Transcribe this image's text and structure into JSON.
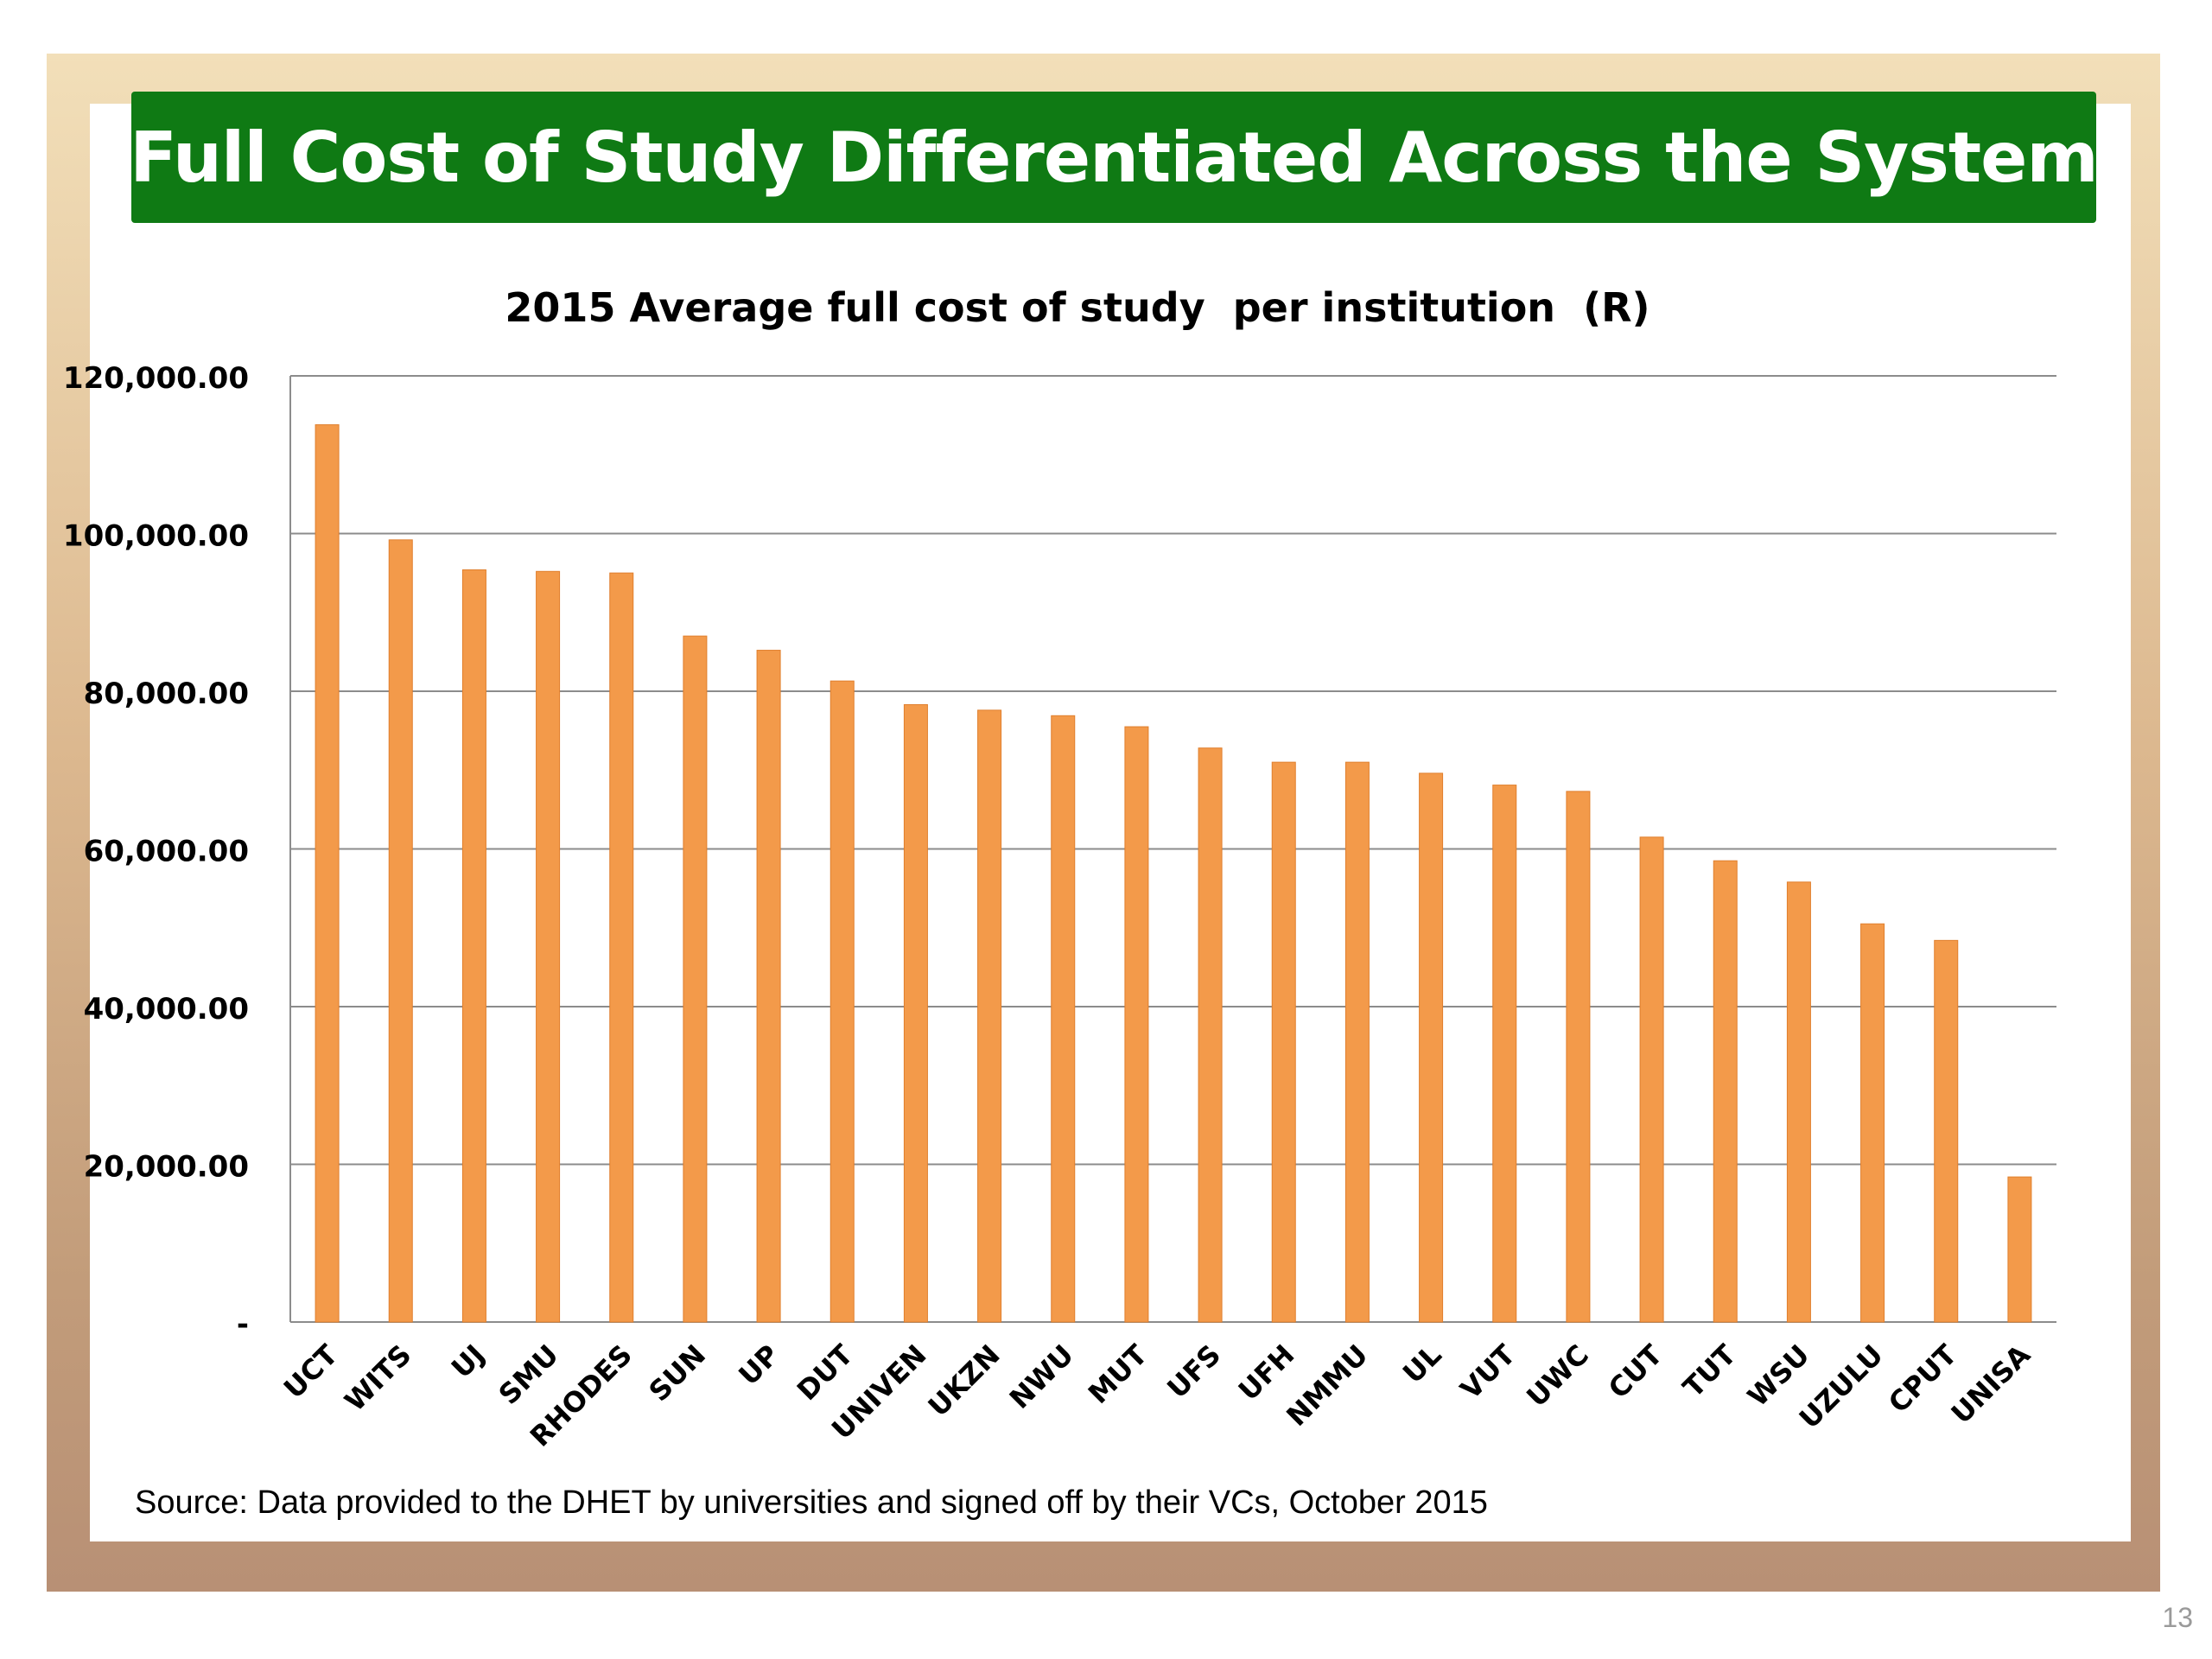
{
  "slide": {
    "title": "Full Cost of Study Differentiated Across the System",
    "source": "Source: Data provided to the DHET by universities and signed off by their VCs, October 2015",
    "page_number": "13"
  },
  "colors": {
    "banner": "#0f7a14",
    "bar": "#f39a4a",
    "bar_outline": "#e07f2d",
    "grid": "#8c8c8c"
  },
  "chart_data": {
    "type": "bar",
    "title": "2015 Average full cost of study  per institution  (R)",
    "xlabel": "",
    "ylabel": "",
    "ylim": [
      0,
      120000
    ],
    "yticks": [
      0,
      20000,
      40000,
      60000,
      80000,
      100000,
      120000
    ],
    "ytick_labels": [
      "-",
      "20,000.00",
      "40,000.00",
      "60,000.00",
      "80,000.00",
      "100,000.00",
      "120,000.00"
    ],
    "grid": true,
    "legend": "none",
    "categories": [
      "UCT",
      "WITS",
      "UJ",
      "SMU",
      "RHODES",
      "SUN",
      "UP",
      "DUT",
      "UNIVEN",
      "UKZN",
      "NWU",
      "MUT",
      "UFS",
      "UFH",
      "NMMU",
      "UL",
      "VUT",
      "UWC",
      "CUT",
      "TUT",
      "WSU",
      "UZULU",
      "CPUT",
      "UNISA"
    ],
    "values": [
      113800,
      99200,
      95400,
      95200,
      95000,
      87000,
      85200,
      81300,
      78300,
      77600,
      76900,
      75500,
      72800,
      71000,
      71000,
      69600,
      68100,
      67300,
      61500,
      58500,
      55800,
      50500,
      48400,
      18400
    ]
  }
}
